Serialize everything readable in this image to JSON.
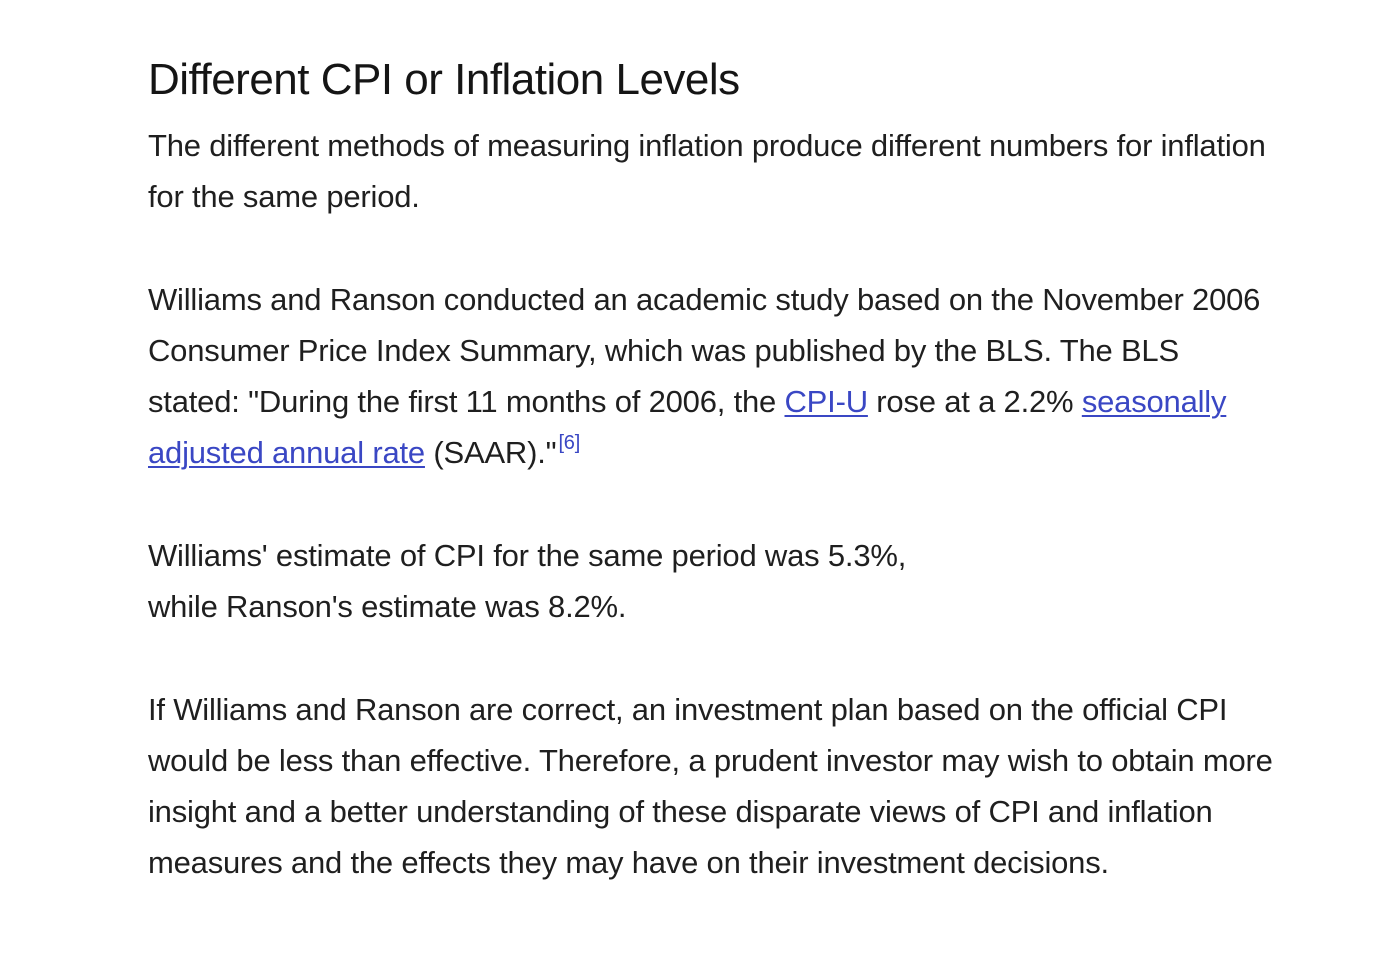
{
  "heading": "Different CPI or Inflation Levels",
  "p1": "The different methods of measuring inflation produce different numbers for inflation for the same period.",
  "p2": {
    "before": "Williams and Ranson conducted an academic study based on the November 2006 Consumer Price Index Summary, which was published by the BLS. The BLS stated: \"During the first 11 months of 2006, the ",
    "link1": "CPI-U",
    "middle": " rose at a 2.2% ",
    "link2": "seasonally adjusted annual rate",
    "after": " (SAAR).\"",
    "ref": "[6]"
  },
  "p3": {
    "line1": "Williams' estimate of CPI for the same period was 5.3%,",
    "line2": "while Ranson's estimate was 8.2%."
  },
  "p4": "If Williams and Ranson are correct, an investment plan based on the official CPI would be less than effective. Therefore, a prudent investor may wish to obtain more insight and a better understanding of these disparate views of CPI and inflation measures and the effects they may have on their investment decisions.",
  "colors": {
    "text": "#1f1f1f",
    "link": "#3a47c4"
  }
}
